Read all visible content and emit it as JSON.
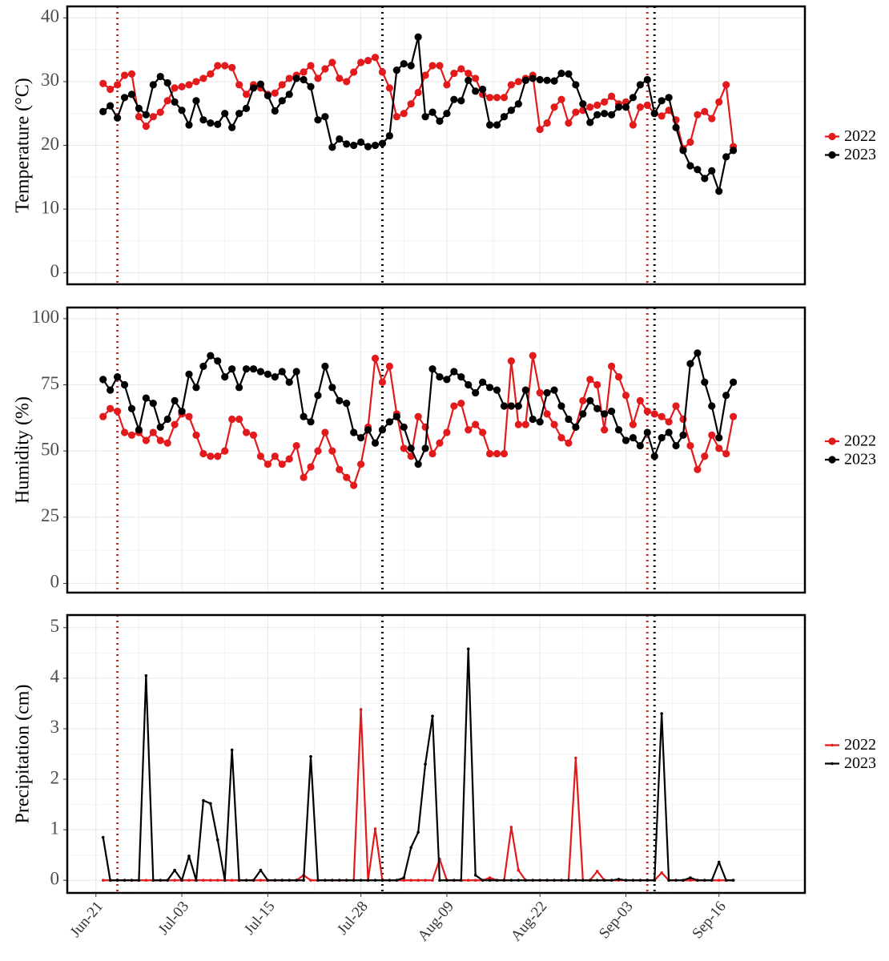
{
  "chart_data": [
    {
      "type": "line",
      "ylabel": "Temperature (°C)",
      "marker": "circle",
      "x": [
        "Jun-22",
        "Jun-23",
        "Jun-24",
        "Jun-25",
        "Jun-26",
        "Jun-27",
        "Jun-28",
        "Jun-29",
        "Jun-30",
        "Jul-01",
        "Jul-02",
        "Jul-03",
        "Jul-04",
        "Jul-05",
        "Jul-06",
        "Jul-07",
        "Jul-08",
        "Jul-09",
        "Jul-10",
        "Jul-11",
        "Jul-12",
        "Jul-13",
        "Jul-14",
        "Jul-15",
        "Jul-16",
        "Jul-17",
        "Jul-18",
        "Jul-19",
        "Jul-20",
        "Jul-21",
        "Jul-22",
        "Jul-23",
        "Jul-24",
        "Jul-25",
        "Jul-26",
        "Jul-27",
        "Jul-28",
        "Jul-29",
        "Jul-30",
        "Jul-31",
        "Aug-01",
        "Aug-02",
        "Aug-03",
        "Aug-04",
        "Aug-05",
        "Aug-06",
        "Aug-07",
        "Aug-08",
        "Aug-09",
        "Aug-10",
        "Aug-11",
        "Aug-12",
        "Aug-13",
        "Aug-14",
        "Aug-15",
        "Aug-16",
        "Aug-17",
        "Aug-18",
        "Aug-19",
        "Aug-20",
        "Aug-21",
        "Aug-22",
        "Aug-23",
        "Aug-24",
        "Aug-25",
        "Aug-26",
        "Aug-27",
        "Aug-28",
        "Aug-29",
        "Aug-30",
        "Aug-31",
        "Sep-01",
        "Sep-02",
        "Sep-03",
        "Sep-04",
        "Sep-05",
        "Sep-06",
        "Sep-07",
        "Sep-08",
        "Sep-09",
        "Sep-10",
        "Sep-11",
        "Sep-12",
        "Sep-13",
        "Sep-14",
        "Sep-15",
        "Sep-16",
        "Sep-17",
        "Sep-18"
      ],
      "xlim": [
        "Jun-17",
        "Sep-28"
      ],
      "ylim": [
        -1.8,
        41.8
      ],
      "yticks": [
        0,
        10,
        20,
        30,
        40
      ],
      "grid": true,
      "legend": "right",
      "vlines": [
        {
          "x": "Jun-24",
          "color": "#e31a1c"
        },
        {
          "x": "Jul-31",
          "color": "#000000"
        },
        {
          "x": "Sep-06",
          "color": "#e31a1c"
        },
        {
          "x": "Sep-07",
          "color": "#000000"
        }
      ],
      "series": [
        {
          "name": "2022",
          "color": "#e31a1c",
          "values": [
            29.7,
            28.8,
            29.5,
            31,
            31.2,
            24.5,
            23,
            24.5,
            25.2,
            27,
            29,
            29.2,
            29.5,
            30,
            30.5,
            31.2,
            32.5,
            32.5,
            32.2,
            29.5,
            28,
            29.5,
            29,
            28,
            28.2,
            29.5,
            30.5,
            31,
            31.5,
            32.5,
            30.5,
            32,
            33,
            30.5,
            30,
            31.5,
            33,
            33.3,
            33.8,
            31.5,
            29,
            24.5,
            25,
            26.5,
            28.3,
            31,
            32.5,
            32.5,
            29.5,
            31.3,
            32,
            31.3,
            30.5,
            28,
            27.5,
            27.5,
            27.5,
            29.5,
            30,
            30.5,
            31,
            22.5,
            23.5,
            26,
            27.2,
            23.5,
            25.2,
            25.5,
            26,
            26.3,
            26.8,
            27.7,
            26.5,
            26.8,
            23.2,
            26,
            26.3,
            25,
            24.6,
            25.5,
            24,
            19.5,
            20.5,
            24.8,
            25.3,
            24.2,
            26.8,
            29.5,
            19.8
          ]
        },
        {
          "name": "2023",
          "color": "#000000",
          "values": [
            25.3,
            26.2,
            24.3,
            27.5,
            28,
            25.8,
            24.8,
            29.5,
            30.8,
            29.8,
            26.8,
            25.5,
            23.2,
            27,
            24,
            23.5,
            23.3,
            25,
            22.8,
            25,
            25.8,
            29,
            29.6,
            27.8,
            25.4,
            27,
            28,
            30.5,
            30.3,
            29.2,
            24,
            24.5,
            19.7,
            21,
            20.2,
            20,
            20.5,
            19.8,
            20,
            20.3,
            21.5,
            31.8,
            32.8,
            32.5,
            37,
            24.5,
            25.2,
            23.8,
            25,
            27.2,
            27,
            30.2,
            28.5,
            28.8,
            23.2,
            23.2,
            24.5,
            25.5,
            26.5,
            30.2,
            30.5,
            30.3,
            30.2,
            30.1,
            31.3,
            31.2,
            29.5,
            26.5,
            23.6,
            24.8,
            25,
            24.8,
            26,
            26,
            27.5,
            29.5,
            30.3,
            25,
            27,
            27.5,
            22.8,
            19.2,
            16.8,
            16.2,
            14.8,
            16,
            12.8,
            18.2,
            19.2
          ]
        }
      ]
    },
    {
      "type": "line",
      "ylabel": "Humidity (%)",
      "marker": "circle",
      "x": [
        "Jun-22",
        "Jun-23",
        "Jun-24",
        "Jun-25",
        "Jun-26",
        "Jun-27",
        "Jun-28",
        "Jun-29",
        "Jun-30",
        "Jul-01",
        "Jul-02",
        "Jul-03",
        "Jul-04",
        "Jul-05",
        "Jul-06",
        "Jul-07",
        "Jul-08",
        "Jul-09",
        "Jul-10",
        "Jul-11",
        "Jul-12",
        "Jul-13",
        "Jul-14",
        "Jul-15",
        "Jul-16",
        "Jul-17",
        "Jul-18",
        "Jul-19",
        "Jul-20",
        "Jul-21",
        "Jul-22",
        "Jul-23",
        "Jul-24",
        "Jul-25",
        "Jul-26",
        "Jul-27",
        "Jul-28",
        "Jul-29",
        "Jul-30",
        "Jul-31",
        "Aug-01",
        "Aug-02",
        "Aug-03",
        "Aug-04",
        "Aug-05",
        "Aug-06",
        "Aug-07",
        "Aug-08",
        "Aug-09",
        "Aug-10",
        "Aug-11",
        "Aug-12",
        "Aug-13",
        "Aug-14",
        "Aug-15",
        "Aug-16",
        "Aug-17",
        "Aug-18",
        "Aug-19",
        "Aug-20",
        "Aug-21",
        "Aug-22",
        "Aug-23",
        "Aug-24",
        "Aug-25",
        "Aug-26",
        "Aug-27",
        "Aug-28",
        "Aug-29",
        "Aug-30",
        "Aug-31",
        "Sep-01",
        "Sep-02",
        "Sep-03",
        "Sep-04",
        "Sep-05",
        "Sep-06",
        "Sep-07",
        "Sep-08",
        "Sep-09",
        "Sep-10",
        "Sep-11",
        "Sep-12",
        "Sep-13",
        "Sep-14",
        "Sep-15",
        "Sep-16",
        "Sep-17",
        "Sep-18"
      ],
      "xlim": [
        "Jun-17",
        "Sep-28"
      ],
      "ylim": [
        -3.5,
        104.2
      ],
      "yticks": [
        0,
        25,
        50,
        75,
        100
      ],
      "grid": true,
      "legend": "right",
      "vlines": [
        {
          "x": "Jun-24",
          "color": "#e31a1c"
        },
        {
          "x": "Jul-31",
          "color": "#000000"
        },
        {
          "x": "Sep-06",
          "color": "#e31a1c"
        },
        {
          "x": "Sep-07",
          "color": "#000000"
        }
      ],
      "series": [
        {
          "name": "2022",
          "color": "#e31a1c",
          "values": [
            63,
            66,
            65,
            57,
            56,
            57,
            54,
            57,
            54,
            53,
            60,
            64,
            63,
            56,
            49,
            48,
            48,
            50,
            62,
            62,
            57,
            56,
            48,
            45,
            48,
            45,
            47,
            52,
            40,
            44,
            50,
            57,
            50,
            43,
            40,
            37,
            45,
            59,
            85,
            76,
            82,
            64,
            51,
            48,
            63,
            59,
            49,
            53,
            57,
            67,
            68,
            58,
            60,
            57,
            49,
            49,
            49,
            84,
            60,
            60,
            86,
            72,
            64,
            60,
            55,
            53,
            59,
            69,
            77,
            75,
            58,
            82,
            78,
            71,
            60,
            69,
            65,
            64,
            63,
            61,
            67,
            62,
            52,
            43,
            48,
            56,
            51,
            49,
            63
          ]
        },
        {
          "name": "2023",
          "color": "#000000",
          "values": [
            77,
            73,
            78,
            75,
            66,
            58,
            70,
            68,
            59,
            62,
            69,
            65,
            79,
            74,
            82,
            86,
            84,
            78,
            81,
            74,
            81,
            81,
            80,
            79,
            78,
            80,
            76,
            80,
            63,
            61,
            71,
            82,
            74,
            69,
            68,
            57,
            55,
            58,
            53,
            58,
            61,
            63,
            59,
            51,
            45,
            51,
            81,
            78,
            77,
            80,
            78,
            75,
            72,
            76,
            74,
            73,
            67,
            67,
            67,
            73,
            62,
            61,
            72,
            73,
            67,
            62,
            59,
            64,
            69,
            66,
            64,
            65,
            58,
            54,
            55,
            52,
            57,
            48,
            55,
            57,
            52,
            56,
            83,
            87,
            76,
            67,
            55,
            71,
            76
          ]
        }
      ]
    },
    {
      "type": "line",
      "ylabel": "Precipitation (cm)",
      "marker": "point",
      "x": [
        "Jun-22",
        "Jun-23",
        "Jun-24",
        "Jun-25",
        "Jun-26",
        "Jun-27",
        "Jun-28",
        "Jun-29",
        "Jun-30",
        "Jul-01",
        "Jul-02",
        "Jul-03",
        "Jul-04",
        "Jul-05",
        "Jul-06",
        "Jul-07",
        "Jul-08",
        "Jul-09",
        "Jul-10",
        "Jul-11",
        "Jul-12",
        "Jul-13",
        "Jul-14",
        "Jul-15",
        "Jul-16",
        "Jul-17",
        "Jul-18",
        "Jul-19",
        "Jul-20",
        "Jul-21",
        "Jul-22",
        "Jul-23",
        "Jul-24",
        "Jul-25",
        "Jul-26",
        "Jul-27",
        "Jul-28",
        "Jul-29",
        "Jul-30",
        "Jul-31",
        "Aug-01",
        "Aug-02",
        "Aug-03",
        "Aug-04",
        "Aug-05",
        "Aug-06",
        "Aug-07",
        "Aug-08",
        "Aug-09",
        "Aug-10",
        "Aug-11",
        "Aug-12",
        "Aug-13",
        "Aug-14",
        "Aug-15",
        "Aug-16",
        "Aug-17",
        "Aug-18",
        "Aug-19",
        "Aug-20",
        "Aug-21",
        "Aug-22",
        "Aug-23",
        "Aug-24",
        "Aug-25",
        "Aug-26",
        "Aug-27",
        "Aug-28",
        "Aug-29",
        "Aug-30",
        "Aug-31",
        "Sep-01",
        "Sep-02",
        "Sep-03",
        "Sep-04",
        "Sep-05",
        "Sep-06",
        "Sep-07",
        "Sep-08",
        "Sep-09",
        "Sep-10",
        "Sep-11",
        "Sep-12",
        "Sep-13",
        "Sep-14",
        "Sep-15",
        "Sep-16",
        "Sep-17",
        "Sep-18"
      ],
      "xlim": [
        "Jun-17",
        "Sep-28"
      ],
      "xticks": [
        "Jun-21",
        "Jul-03",
        "Jul-15",
        "Jul-28",
        "Aug-09",
        "Aug-22",
        "Sep-03",
        "Sep-16"
      ],
      "ylim": [
        -0.25,
        5.25
      ],
      "yticks": [
        0,
        1,
        2,
        3,
        4,
        5
      ],
      "grid": true,
      "legend": "right",
      "vlines": [
        {
          "x": "Jun-24",
          "color": "#e31a1c"
        },
        {
          "x": "Jul-31",
          "color": "#000000"
        },
        {
          "x": "Sep-06",
          "color": "#e31a1c"
        },
        {
          "x": "Sep-07",
          "color": "#000000"
        }
      ],
      "series": [
        {
          "name": "2022",
          "color": "#e31a1c",
          "values": [
            0,
            0,
            0,
            0,
            0,
            0,
            0,
            0,
            0,
            0,
            0,
            0,
            0,
            0,
            0,
            0,
            0,
            0,
            0,
            0,
            0,
            0,
            0,
            0,
            0,
            0,
            0,
            0,
            0.1,
            0,
            0,
            0,
            0,
            0,
            0,
            0,
            3.38,
            0,
            1.02,
            0,
            0,
            0,
            0,
            0,
            0,
            0,
            0,
            0.42,
            0,
            0,
            0,
            0,
            0,
            0,
            0.05,
            0,
            0,
            1.05,
            0.2,
            0,
            0,
            0,
            0,
            0,
            0,
            0,
            2.42,
            0,
            0,
            0.18,
            0,
            0,
            0,
            0,
            0,
            0,
            0,
            0,
            0.15,
            0,
            0,
            0,
            0,
            0,
            0,
            0,
            0,
            0,
            0
          ]
        },
        {
          "name": "2023",
          "color": "#000000",
          "values": [
            0.85,
            0,
            0,
            0,
            0,
            0,
            4.05,
            0,
            0,
            0,
            0.2,
            0,
            0.48,
            0,
            1.58,
            1.52,
            0.8,
            0,
            2.58,
            0,
            0,
            0,
            0.2,
            0,
            0,
            0,
            0,
            0,
            0,
            2.45,
            0,
            0,
            0,
            0,
            0,
            0,
            0,
            0,
            0,
            0,
            0,
            0,
            0.05,
            0.65,
            0.95,
            2.3,
            3.25,
            0,
            0,
            0,
            0,
            4.58,
            0.1,
            0,
            0,
            0,
            0,
            0,
            0,
            0,
            0,
            0,
            0,
            0,
            0,
            0,
            0,
            0,
            0,
            0,
            0,
            0,
            0.02,
            0,
            0,
            0,
            0,
            0,
            3.3,
            0,
            0,
            0,
            0.05,
            0,
            0,
            0,
            0.36,
            0,
            0
          ]
        }
      ]
    }
  ]
}
